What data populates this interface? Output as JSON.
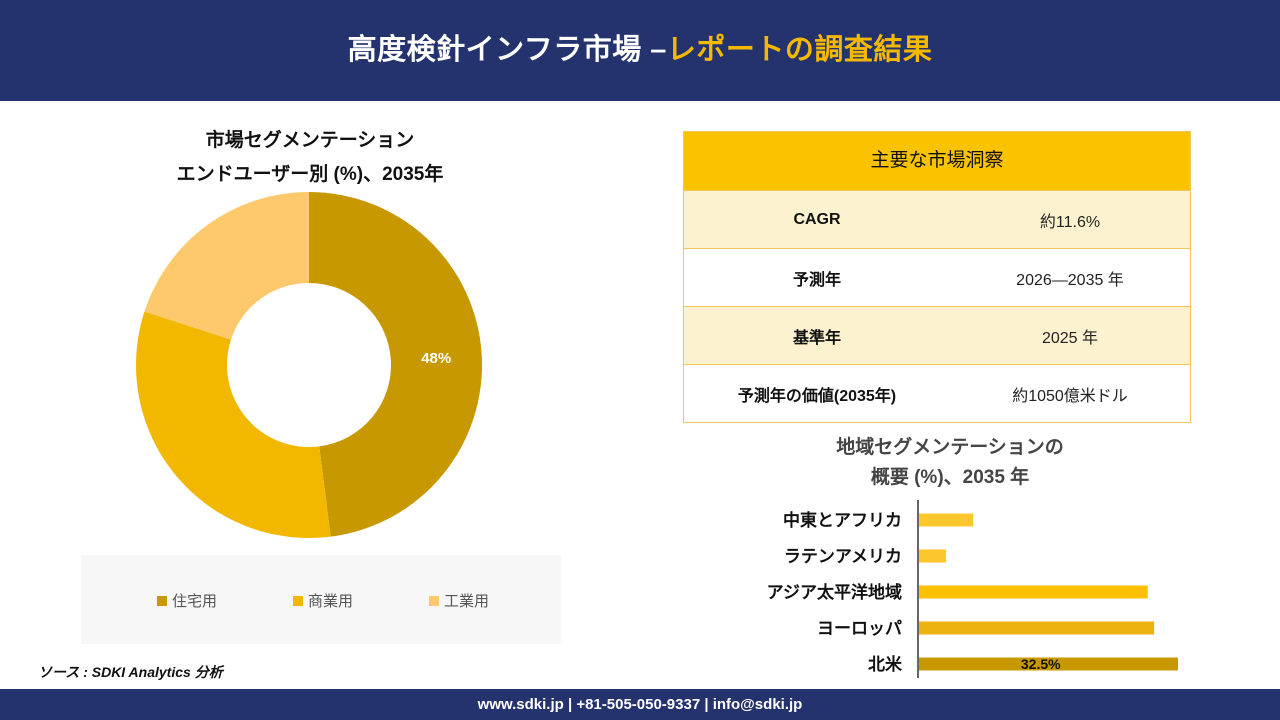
{
  "header": {
    "title_main": "高度検針インフラ市場 –",
    "title_accent": "レポートの調査結果"
  },
  "donut": {
    "title_line1": "市場セグメンテーション",
    "title_line2": "エンドユーザー別 (%)、2035年"
  },
  "table": {
    "heading": "主要な市場洞察",
    "rows": [
      {
        "label": "CAGR",
        "value": "約11.6%"
      },
      {
        "label": "予測年",
        "value": "2026—2035 年"
      },
      {
        "label": "基準年",
        "value": "2025 年"
      },
      {
        "label": "予測年の価値(2035年)",
        "value": "約1050億米ドル"
      }
    ]
  },
  "bar_section": {
    "title_line1": "地域セグメンテーションの",
    "title_line2": "概要 (%)、2035 年"
  },
  "source": "ソース : SDKI Analytics 分析",
  "footer": {
    "contact": "www.sdki.jp | +81-505-050-9337 | info@sdki.jp"
  },
  "chart_data": [
    {
      "type": "pie",
      "title": "市場セグメンテーション エンドユーザー別 (%)、2035年",
      "categories": [
        "住宅用",
        "商業用",
        "工業用"
      ],
      "values": [
        48,
        32,
        20
      ],
      "data_labels": [
        "48%",
        "",
        ""
      ],
      "colors": [
        "#c89800",
        "#f2b800",
        "#fdc96c"
      ],
      "donut": true,
      "legend": "bottom"
    },
    {
      "type": "bar",
      "orientation": "horizontal",
      "title": "地域セグメンテーションの 概要 (%)、2035 年",
      "categories": [
        "中東とアフリカ",
        "ラテンアメリカ",
        "アジア太平洋地域",
        "ヨーロッパ",
        "北米"
      ],
      "values": [
        6.8,
        3.4,
        28.7,
        29.5,
        32.5
      ],
      "data_labels": [
        "",
        "",
        "",
        "",
        "32.5%"
      ],
      "colors": [
        "#fcc72c",
        "#fcc72c",
        "#fcc000",
        "#ecb310",
        "#c89800"
      ],
      "xlim": [
        0,
        33
      ]
    }
  ]
}
